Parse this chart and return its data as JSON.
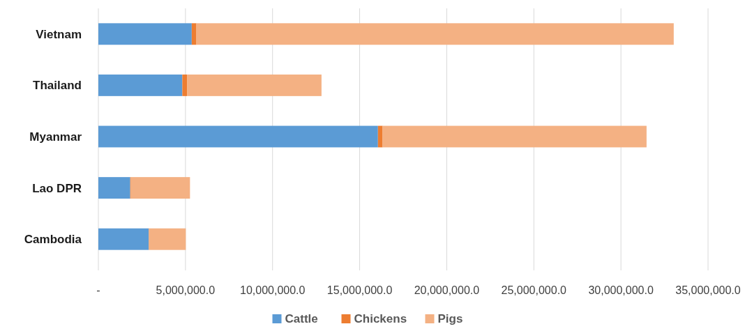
{
  "chart_data": {
    "type": "bar",
    "orientation": "horizontal",
    "stacked": true,
    "categories": [
      "Vietnam",
      "Thailand",
      "Myanmar",
      "Lao DPR",
      "Cambodia"
    ],
    "series": [
      {
        "name": "Cattle",
        "color": "#5b9bd5",
        "values": [
          5360000,
          4820000,
          16050000,
          1830000,
          2890000
        ]
      },
      {
        "name": "Chickens",
        "color": "#ed7d31",
        "values": [
          270000,
          270000,
          270000,
          40000,
          20000
        ]
      },
      {
        "name": "Pigs",
        "color": "#f4b183",
        "values": [
          27400000,
          7720000,
          15150000,
          3390000,
          2110000
        ]
      }
    ],
    "xlim": [
      0,
      35000000
    ],
    "xticks": [
      {
        "value": 0,
        "label": "-"
      },
      {
        "value": 5000000,
        "label": "5,000,000.0"
      },
      {
        "value": 10000000,
        "label": "10,000,000.0"
      },
      {
        "value": 15000000,
        "label": "15,000,000.0"
      },
      {
        "value": 20000000,
        "label": "20,000,000.0"
      },
      {
        "value": 25000000,
        "label": "25,000,000.0"
      },
      {
        "value": 30000000,
        "label": "30,000,000.0"
      },
      {
        "value": 35000000,
        "label": "35,000,000.0"
      }
    ],
    "grid": "x",
    "legend": "bottom"
  }
}
